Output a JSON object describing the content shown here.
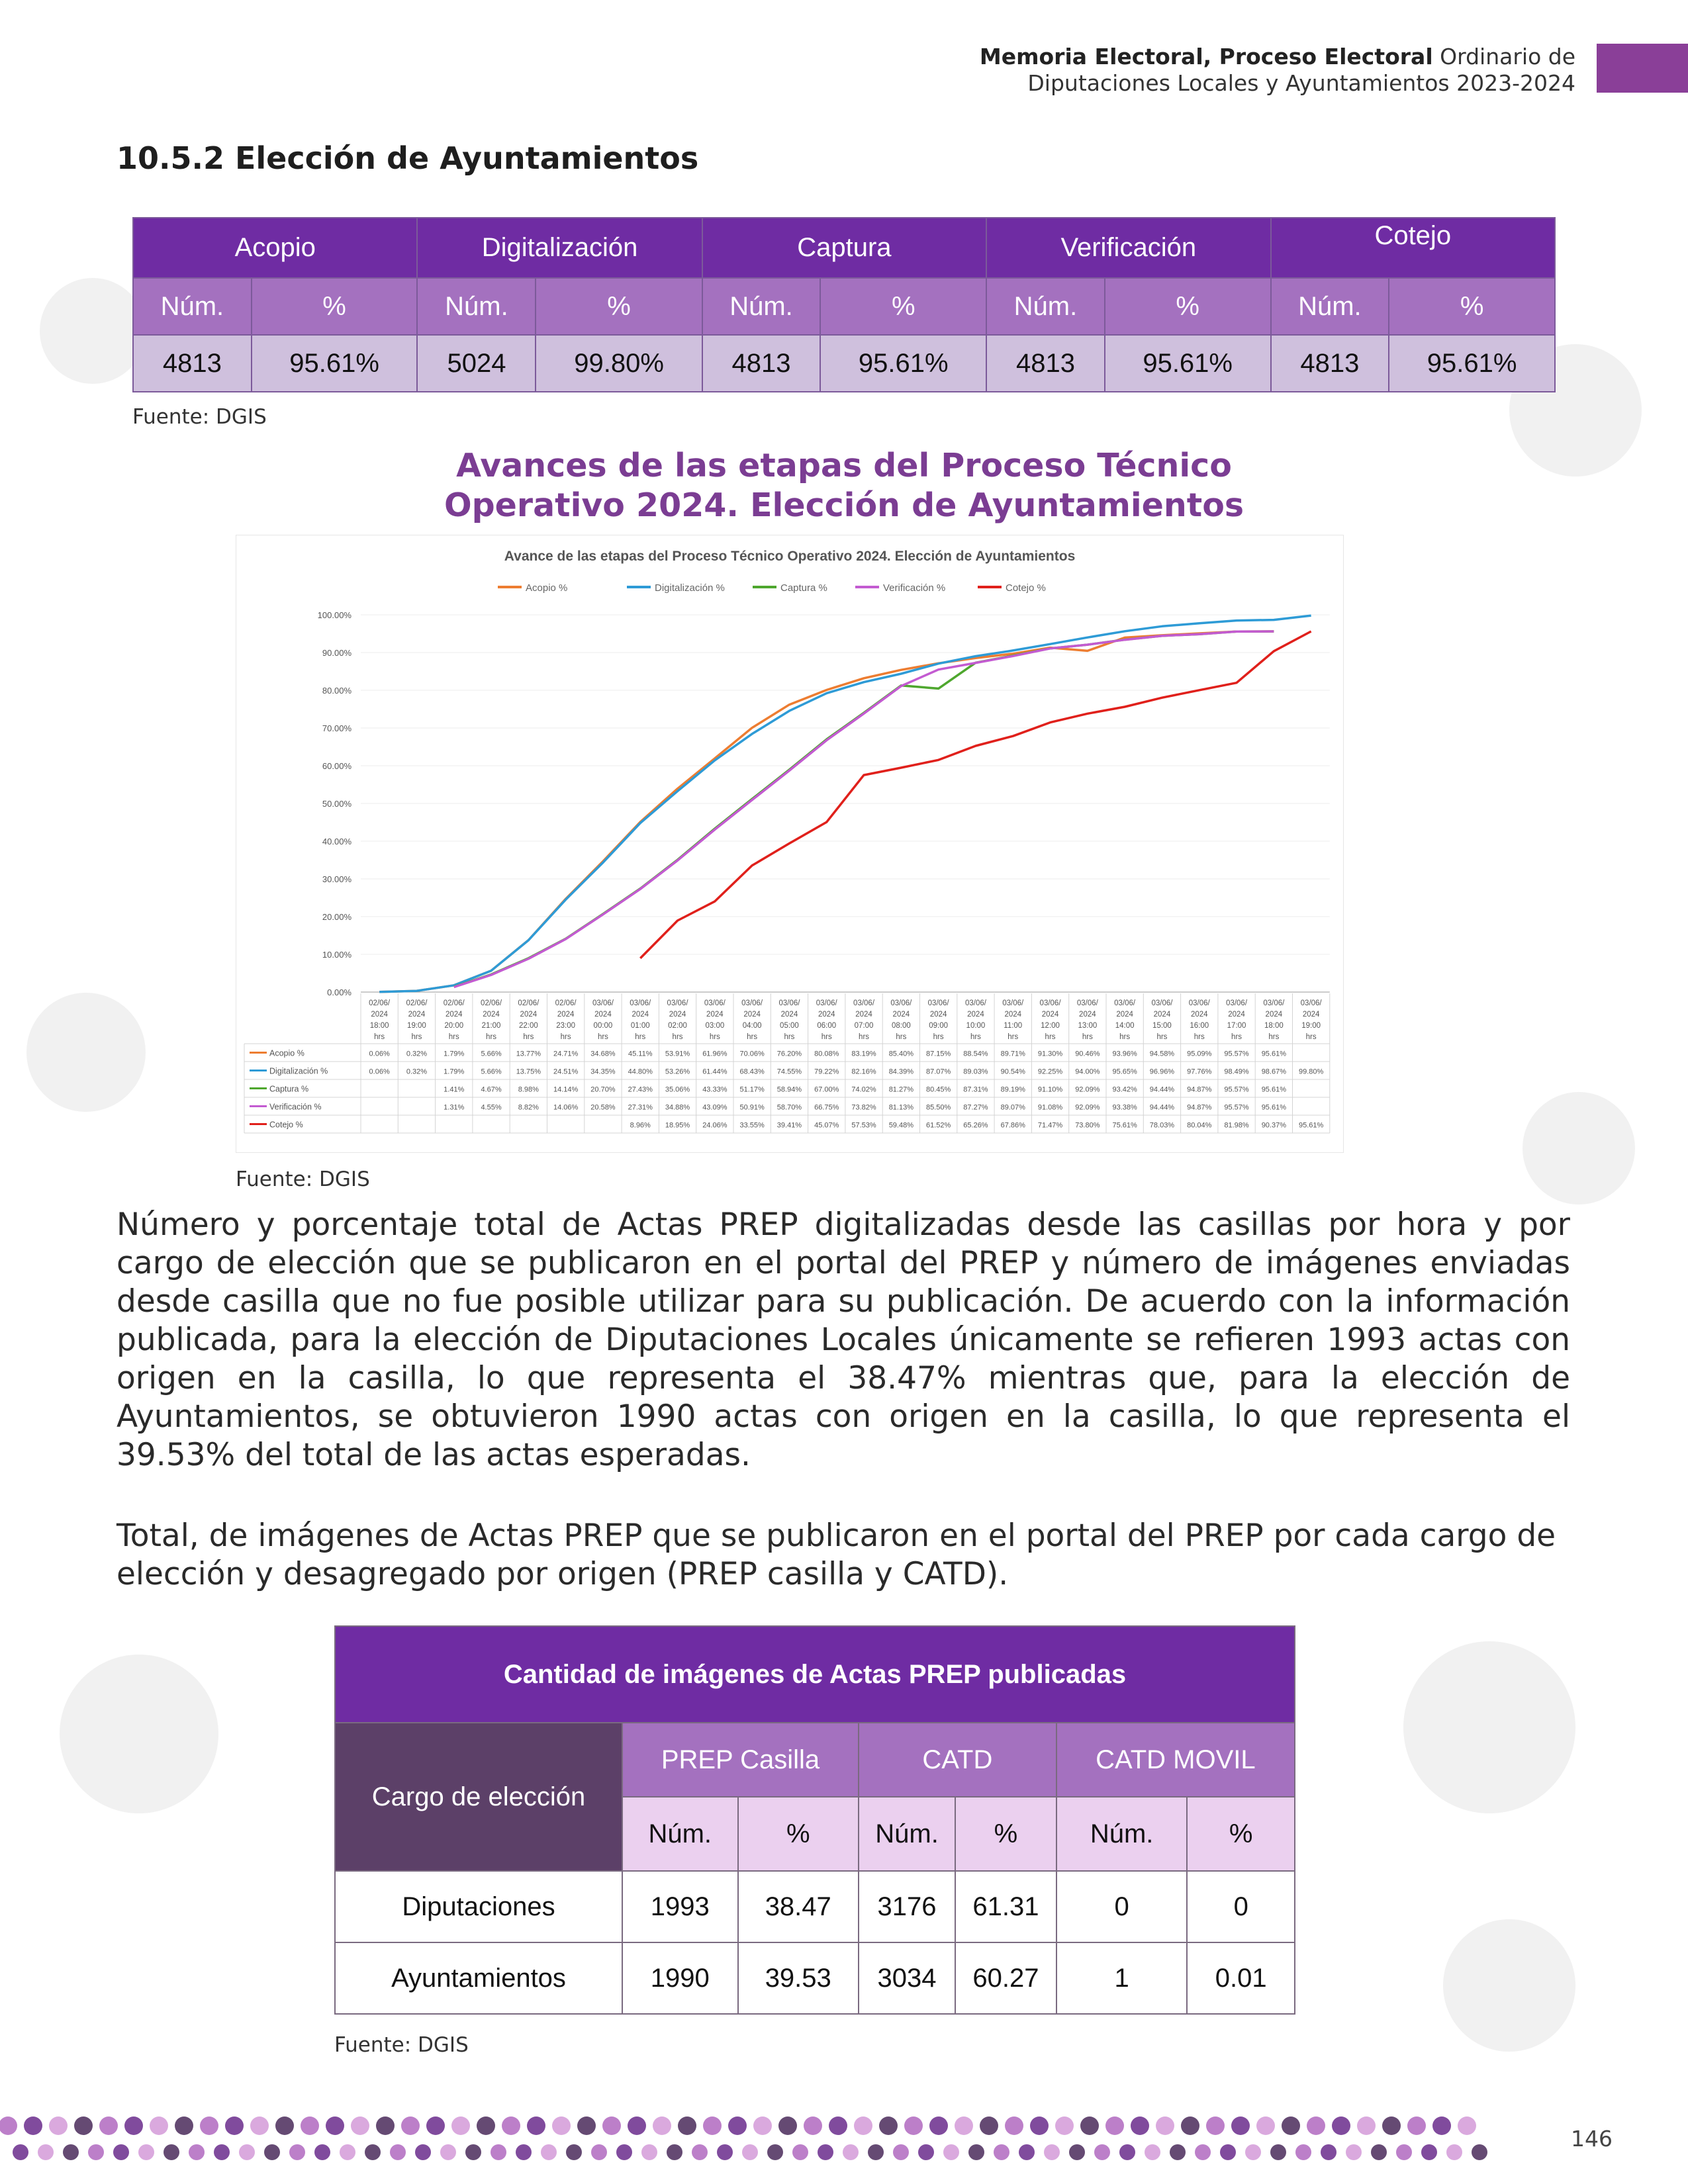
{
  "header": {
    "bold": "Memoria Electoral, Proceso Electoral",
    "normal": " Ordinario de",
    "line2": "Diputaciones Locales y Ayuntamientos 2023-2024"
  },
  "section_title": "10.5.2 Elección de Ayuntamientos",
  "table1": {
    "groups": [
      "Acopio",
      "Digitalización",
      "Captura",
      "Verificación",
      "Cotejo"
    ],
    "subheaders": [
      "Núm.",
      "%",
      "Núm.",
      "%",
      "Núm.",
      "%",
      "Núm.",
      "%",
      "Núm.",
      "%"
    ],
    "values": [
      "4813",
      "95.61%",
      "5024",
      "99.80%",
      "4813",
      "95.61%",
      "4813",
      "95.61%",
      "4813",
      "95.61%"
    ]
  },
  "source1": "Fuente: DGIS",
  "figure_title_line1": "Avances de las etapas del Proceso Técnico",
  "figure_title_line2": "Operativo 2024. Elección de Ayuntamientos",
  "chart_data": {
    "type": "line",
    "title": "Avance de las etapas del Proceso Técnico Operativo 2024. Elección de Ayuntamientos",
    "x": [
      "02/06/ 2024 18:00 hrs",
      "02/06/ 2024 19:00 hrs",
      "02/06/ 2024 20:00 hrs",
      "02/06/ 2024 21:00 hrs",
      "02/06/ 2024 22:00 hrs",
      "02/06/ 2024 23:00 hrs",
      "03/06/ 2024 00:00 hrs",
      "03/06/ 2024 01:00 hrs",
      "03/06/ 2024 02:00 hrs",
      "03/06/ 2024 03:00 hrs",
      "03/06/ 2024 04:00 hrs",
      "03/06/ 2024 05:00 hrs",
      "03/06/ 2024 06:00 hrs",
      "03/06/ 2024 07:00 hrs",
      "03/06/ 2024 08:00 hrs",
      "03/06/ 2024 09:00 hrs",
      "03/06/ 2024 10:00 hrs",
      "03/06/ 2024 11:00 hrs",
      "03/06/ 2024 12:00 hrs",
      "03/06/ 2024 13:00 hrs",
      "03/06/ 2024 14:00 hrs",
      "03/06/ 2024 15:00 hrs",
      "03/06/ 2024 16:00 hrs",
      "03/06/ 2024 17:00 hrs",
      "03/06/ 2024 18:00 hrs",
      "03/06/ 2024 19:00 hrs"
    ],
    "yticks": [
      "0.00%",
      "10.00%",
      "20.00%",
      "30.00%",
      "40.00%",
      "50.00%",
      "60.00%",
      "70.00%",
      "80.00%",
      "90.00%",
      "100.00%"
    ],
    "ylim": [
      0,
      100
    ],
    "legend_position": "top",
    "series": [
      {
        "name": "Acopio %",
        "color": "#ed7d31",
        "values": [
          0.06,
          0.32,
          1.79,
          5.66,
          13.77,
          24.71,
          34.68,
          45.11,
          53.91,
          61.96,
          70.06,
          76.2,
          80.08,
          83.19,
          85.4,
          87.15,
          88.54,
          89.71,
          91.3,
          90.46,
          93.96,
          94.58,
          95.09,
          95.57,
          95.61,
          null
        ],
        "labels": [
          "0.06%",
          "0.32%",
          "1.79%",
          "5.66%",
          "13.77%",
          "24.71%",
          "34.68%",
          "45.11%",
          "53.91%",
          "61.96%",
          "70.06%",
          "76.20%",
          "80.08%",
          "83.19%",
          "85.40%",
          "87.15%",
          "88.54%",
          "89.71%",
          "91.30%",
          "90.46%",
          "93.96%",
          "94.58%",
          "95.09%",
          "95.57%",
          "95.61%",
          ""
        ]
      },
      {
        "name": "Digitalización %",
        "color": "#2e9bd6",
        "values": [
          0.06,
          0.32,
          1.79,
          5.66,
          13.75,
          24.51,
          34.35,
          44.8,
          53.26,
          61.44,
          68.43,
          74.55,
          79.22,
          82.16,
          84.39,
          87.07,
          89.03,
          90.54,
          92.25,
          94.0,
          95.65,
          96.96,
          97.76,
          98.49,
          98.67,
          99.8
        ],
        "labels": [
          "0.06%",
          "0.32%",
          "1.79%",
          "5.66%",
          "13.75%",
          "24.51%",
          "34.35%",
          "44.80%",
          "53.26%",
          "61.44%",
          "68.43%",
          "74.55%",
          "79.22%",
          "82.16%",
          "84.39%",
          "87.07%",
          "89.03%",
          "90.54%",
          "92.25%",
          "94.00%",
          "95.65%",
          "96.96%",
          "97.76%",
          "98.49%",
          "98.67%",
          "99.80%"
        ]
      },
      {
        "name": "Captura %",
        "color": "#4ea72e",
        "values": [
          null,
          null,
          1.41,
          4.67,
          8.98,
          14.14,
          20.7,
          27.43,
          35.06,
          43.33,
          51.17,
          58.94,
          67.0,
          74.02,
          81.27,
          80.45,
          87.31,
          89.19,
          91.1,
          92.09,
          93.42,
          94.44,
          94.87,
          95.57,
          95.61,
          null
        ],
        "labels": [
          "",
          "",
          "1.41%",
          "4.67%",
          "8.98%",
          "14.14%",
          "20.70%",
          "27.43%",
          "35.06%",
          "43.33%",
          "51.17%",
          "58.94%",
          "67.00%",
          "74.02%",
          "81.27%",
          "80.45%",
          "87.31%",
          "89.19%",
          "91.10%",
          "92.09%",
          "93.42%",
          "94.44%",
          "94.87%",
          "95.57%",
          "95.61%",
          ""
        ]
      },
      {
        "name": "Verificación %",
        "color": "#c35bd1",
        "values": [
          null,
          null,
          1.31,
          4.55,
          8.82,
          14.06,
          20.58,
          27.31,
          34.88,
          43.09,
          50.91,
          58.7,
          66.75,
          73.82,
          81.13,
          85.5,
          87.27,
          89.07,
          91.08,
          92.09,
          93.38,
          94.44,
          94.87,
          95.57,
          95.61,
          null
        ],
        "labels": [
          "",
          "",
          "1.31%",
          "4.55%",
          "8.82%",
          "14.06%",
          "20.58%",
          "27.31%",
          "34.88%",
          "43.09%",
          "50.91%",
          "58.70%",
          "66.75%",
          "73.82%",
          "81.13%",
          "85.50%",
          "87.27%",
          "89.07%",
          "91.08%",
          "92.09%",
          "93.38%",
          "94.44%",
          "94.87%",
          "95.57%",
          "95.61%",
          ""
        ]
      },
      {
        "name": "Cotejo %",
        "color": "#e0201b",
        "values": [
          null,
          null,
          null,
          null,
          null,
          null,
          null,
          8.96,
          18.95,
          24.06,
          33.55,
          39.41,
          45.07,
          57.53,
          59.48,
          61.52,
          65.26,
          67.86,
          71.47,
          73.8,
          75.61,
          78.03,
          80.04,
          81.98,
          90.37,
          95.61
        ],
        "labels": [
          "",
          "",
          "",
          "",
          "",
          "",
          "",
          "8.96%",
          "18.95%",
          "24.06%",
          "33.55%",
          "39.41%",
          "45.07%",
          "57.53%",
          "59.48%",
          "61.52%",
          "65.26%",
          "67.86%",
          "71.47%",
          "73.80%",
          "75.61%",
          "78.03%",
          "80.04%",
          "81.98%",
          "90.37%",
          "95.61%"
        ]
      }
    ]
  },
  "source2": "Fuente: DGIS",
  "paragraph1": "Número y porcentaje total de Actas PREP digitalizadas desde las casillas por hora y por cargo de elección que se publicaron en el portal del PREP y número de imágenes enviadas desde casilla que no fue posible utilizar para su publicación. De acuerdo con la información publicada, para la elección de Diputaciones Locales únicamente se refieren 1993 actas con origen en la casilla, lo que representa el 38.47% mientras que, para la elección de Ayuntamientos, se obtuvieron 1990 actas con origen en la casilla, lo que representa el 39.53% del total de las actas esperadas.",
  "paragraph2": "Total, de imágenes de Actas PREP que se publicaron en el portal del PREP por cada cargo de elección y desagregado por origen (PREP casilla y CATD).",
  "table2": {
    "title": "Cantidad de imágenes de Actas PREP publicadas",
    "cargo_header": "Cargo de elección",
    "groups": [
      "PREP Casilla",
      "CATD",
      "CATD MOVIL"
    ],
    "subheaders": [
      "Núm.",
      "%",
      "Núm.",
      "%",
      "Núm.",
      "%"
    ],
    "rows": [
      {
        "cargo": "Diputaciones",
        "values": [
          "1993",
          "38.47",
          "3176",
          "61.31",
          "0",
          "0"
        ]
      },
      {
        "cargo": "Ayuntamientos",
        "values": [
          "1990",
          "39.53",
          "3034",
          "60.27",
          "1",
          "0.01"
        ]
      }
    ]
  },
  "source3": "Fuente: DGIS",
  "page_number": "146",
  "colors": {
    "brand_purple": "#6f2ca3",
    "header_lilac": "#a471bf",
    "title_purple": "#7b3d93"
  }
}
